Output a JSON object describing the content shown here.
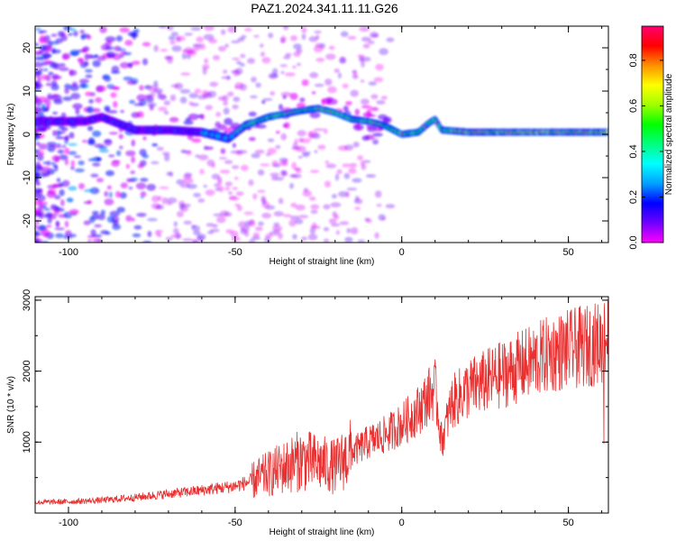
{
  "title": "PAZ1.2024.341.11.11.G26",
  "chart_data": [
    {
      "type": "heatmap",
      "xlabel": "Height of straight line (km)",
      "ylabel": "Frequency (Hz)",
      "xlim": [
        -110,
        62
      ],
      "ylim": [
        -25,
        25
      ],
      "xticks": [
        -100,
        -50,
        0,
        50
      ],
      "yticks": [
        -20,
        -10,
        0,
        10,
        20
      ],
      "grid": false,
      "colorbar": {
        "label": "Normalized spectral amplitude",
        "range": [
          0,
          0.95
        ],
        "ticks": [
          0.0,
          0.2,
          0.4,
          0.6,
          0.8
        ],
        "tick_labels": [
          "0.0",
          "0.2",
          "0.4",
          "0.6",
          "0.8"
        ],
        "colormap": [
          "#ff00ff",
          "#7000ff",
          "#0000ff",
          "#00a0ff",
          "#00ffff",
          "#00ff80",
          "#00ff00",
          "#a0ff00",
          "#ffff00",
          "#ff9000",
          "#ff0000",
          "#ff0070"
        ]
      },
      "ridge": {
        "x": [
          -110,
          -95,
          -90,
          -80,
          -70,
          -60,
          -52,
          -47,
          -40,
          -30,
          -25,
          -20,
          -15,
          -10,
          -5,
          0,
          5,
          8,
          10,
          12,
          20,
          30,
          40,
          50,
          62
        ],
        "freq": [
          3,
          3,
          4,
          1,
          1,
          0.5,
          -1,
          2,
          4,
          5.5,
          6,
          5,
          3.5,
          3,
          2,
          0,
          0.5,
          2.5,
          3.5,
          1,
          0.5,
          0.5,
          0.5,
          0.5,
          0.5
        ]
      }
    },
    {
      "type": "line",
      "xlabel": "Height of straight line (km)",
      "ylabel": "SNR (10 * v/v)",
      "xlim": [
        -110,
        62
      ],
      "ylim": [
        0,
        3050
      ],
      "xticks": [
        -100,
        -50,
        0,
        50
      ],
      "yticks": [
        1000,
        2000,
        3000
      ],
      "grid": false,
      "series": [
        {
          "color": "#e83030",
          "trend": {
            "x": [
              -110,
              -100,
              -90,
              -80,
              -70,
              -60,
              -50,
              -45,
              -40,
              -35,
              -30,
              -25,
              -20,
              -15,
              -10,
              -5,
              0,
              5,
              8,
              10,
              12,
              15,
              20,
              25,
              30,
              35,
              40,
              45,
              50,
              55,
              60,
              62
            ],
            "y": [
              150,
              160,
              180,
              220,
              270,
              320,
              380,
              450,
              550,
              650,
              750,
              700,
              650,
              850,
              1000,
              1100,
              1250,
              1450,
              1650,
              1750,
              1000,
              1550,
              1750,
              1850,
              1950,
              2050,
              2150,
              2250,
              2300,
              2350,
              2400,
              2500
            ]
          }
        }
      ]
    }
  ]
}
